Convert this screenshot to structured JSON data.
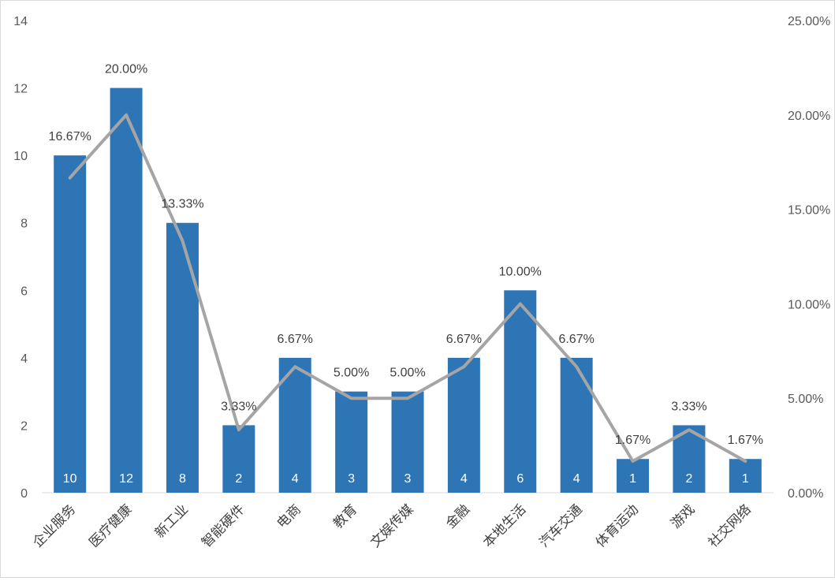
{
  "chart_data": {
    "type": "bar",
    "title": "",
    "xlabel": "",
    "ylabel": "",
    "ylim": [
      0,
      14
    ],
    "y2lim": [
      0,
      25
    ],
    "categories": [
      "企业服务",
      "医疗健康",
      "新工业",
      "智能硬件",
      "电商",
      "教育",
      "文娱传媒",
      "金融",
      "本地生活",
      "汽车交通",
      "体育运动",
      "游戏",
      "社交网络"
    ],
    "series": [
      {
        "type": "bar",
        "axis": "left",
        "color": "#2E75B6",
        "values": [
          10,
          12,
          8,
          2,
          4,
          3,
          3,
          4,
          6,
          4,
          1,
          2,
          1
        ]
      },
      {
        "type": "line",
        "axis": "right",
        "color": "#A5A5A5",
        "values": [
          16.67,
          20.0,
          13.33,
          3.33,
          6.67,
          5.0,
          5.0,
          6.67,
          10.0,
          6.67,
          1.67,
          3.33,
          1.67
        ],
        "labels": [
          "16.67%",
          "20.00%",
          "13.33%",
          "3.33%",
          "6.67%",
          "5.00%",
          "5.00%",
          "6.67%",
          "10.00%",
          "6.67%",
          "1.67%",
          "3.33%",
          "1.67%"
        ]
      }
    ],
    "y_ticks": [
      "0",
      "2",
      "4",
      "6",
      "8",
      "10",
      "12",
      "14"
    ],
    "y2_ticks": [
      "0.00%",
      "5.00%",
      "10.00%",
      "15.00%",
      "20.00%",
      "25.00%"
    ],
    "grid": false,
    "legend": "none"
  }
}
